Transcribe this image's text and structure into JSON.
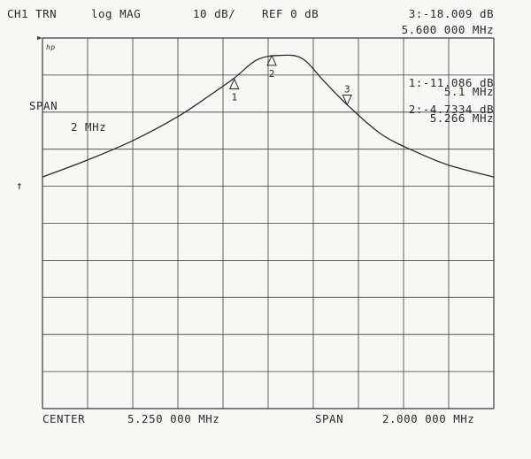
{
  "header": {
    "channel": "CH1 TRN",
    "format": "log MAG",
    "scale": "10 dB/",
    "reference": "REF 0 dB",
    "active_marker_value": "3:-18.009 dB",
    "active_marker_freq": "5.600 000 MHz"
  },
  "markers_readout": [
    {
      "value": "1:-11.086 dB",
      "freq": "5.1 MHz"
    },
    {
      "value": "2:-4.7334 dB",
      "freq": "5.266 MHz"
    }
  ],
  "side": {
    "span_label": "SPAN",
    "span_value": "2 MHz",
    "ref_arrow": "↑",
    "logo": "hp"
  },
  "footer": {
    "center_label": "CENTER",
    "center_value": "5.250 000 MHz",
    "span_label": "SPAN",
    "span_value": "2.000 000 MHz"
  },
  "chart_data": {
    "type": "line",
    "grid": true,
    "xlim": [
      4.25,
      6.25
    ],
    "ylim": [
      -100,
      0
    ],
    "x_units": "MHz",
    "y_units": "dB",
    "series": [
      {
        "x": [
          4.25,
          4.45,
          4.65,
          4.85,
          5.0,
          5.1,
          5.2,
          5.3,
          5.4,
          5.5,
          5.6,
          5.75,
          5.9,
          6.05,
          6.25
        ],
        "y": [
          -37.5,
          -32.9,
          -27.7,
          -21.2,
          -15.1,
          -10.8,
          -5.9,
          -4.7,
          -5.5,
          -11.8,
          -18.0,
          -25.9,
          -30.6,
          -34.3,
          -37.5
        ]
      }
    ],
    "markers": [
      {
        "label": "1",
        "x": 5.1,
        "y": -11.086,
        "direction": "up"
      },
      {
        "label": "2",
        "x": 5.266,
        "y": -4.7334,
        "direction": "up"
      },
      {
        "label": "3",
        "x": 5.6,
        "y": -18.009,
        "direction": "down"
      }
    ]
  }
}
